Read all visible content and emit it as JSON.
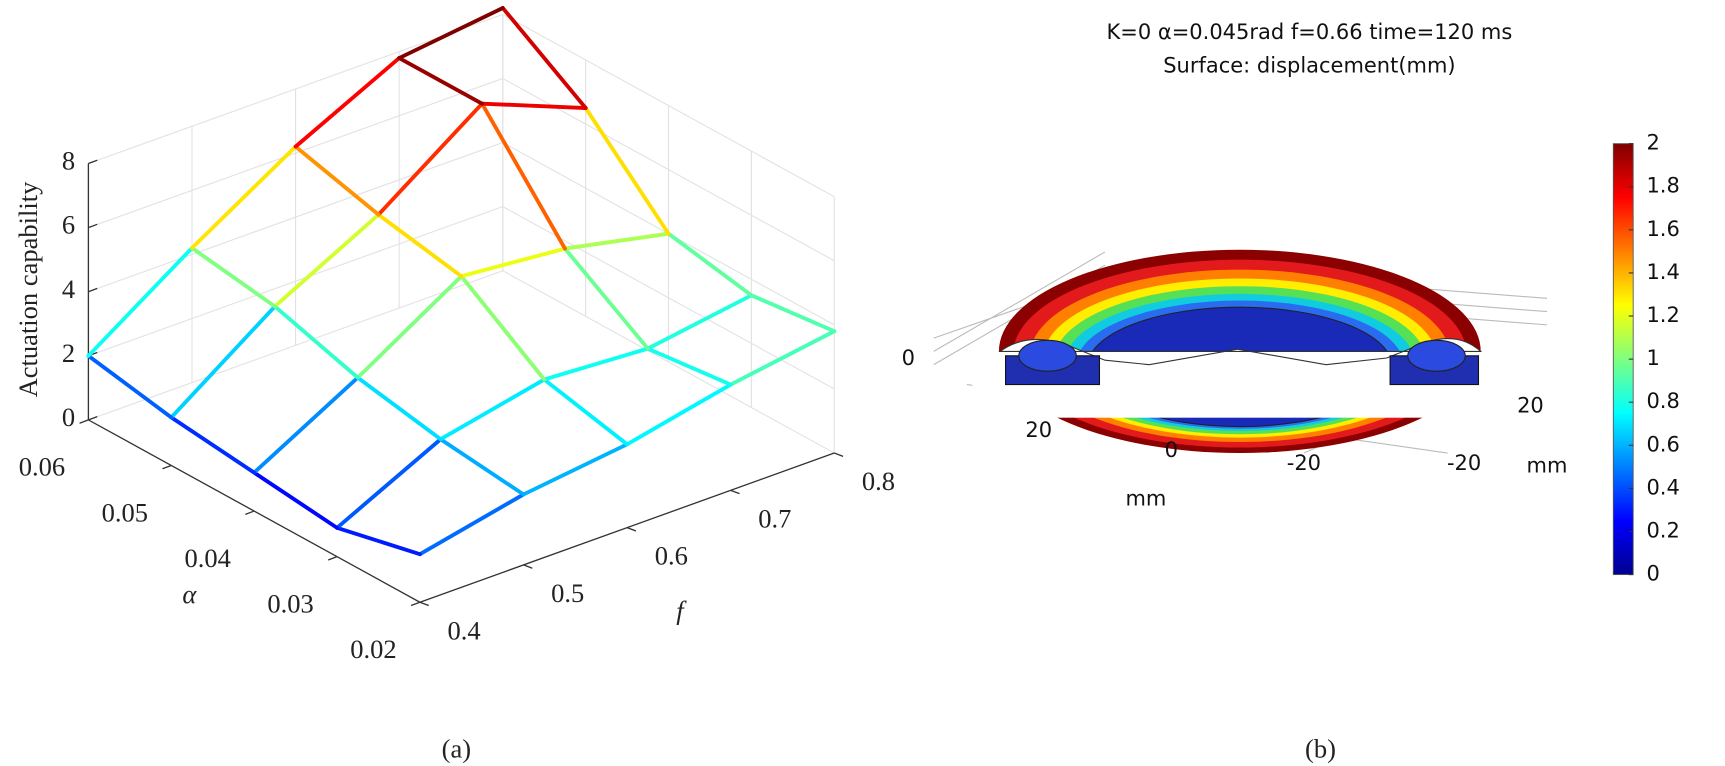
{
  "chart_data": [
    {
      "type": "mesh3d",
      "zlabel": "Actuation capability",
      "xlabel": "α",
      "ylabel": "f",
      "x": [
        0.02,
        0.03,
        0.04,
        0.05,
        0.06
      ],
      "y": [
        0.4,
        0.5,
        0.6,
        0.7,
        0.8
      ],
      "z": [
        [
          1.5,
          2.2,
          2.6,
          3.3,
          3.8
        ],
        [
          0.9,
          2.5,
          3.2,
          3.0,
          3.5
        ],
        [
          1.2,
          3.0,
          5.0,
          4.7,
          4.0
        ],
        [
          1.5,
          3.8,
          5.5,
          7.8,
          6.5
        ],
        [
          2.0,
          4.2,
          6.2,
          7.8,
          8.2
        ]
      ],
      "xlim": [
        0.02,
        0.06
      ],
      "xticks": [
        0.02,
        0.03,
        0.04,
        0.05,
        0.06
      ],
      "ylim": [
        0.4,
        0.8
      ],
      "yticks": [
        0.4,
        0.5,
        0.6,
        0.7,
        0.8
      ],
      "zlim": [
        0,
        8
      ],
      "zticks": [
        0,
        2,
        4,
        6,
        8
      ],
      "grid": true,
      "colormap": "jet",
      "caption": "(a)"
    },
    {
      "type": "surface-render",
      "title": "K=0 α=0.045rad f=0.66 time=120 ms",
      "subtitle": "Surface:  displacement(mm)",
      "zticks": [
        0
      ],
      "xticks": [
        20,
        0,
        -20
      ],
      "yticks": [
        20,
        -20
      ],
      "xlabel": "mm",
      "ylabel": "mm",
      "clim": [
        0,
        2
      ],
      "cticks": [
        0,
        0.2,
        0.4,
        0.6,
        0.8,
        1,
        1.2,
        1.4,
        1.6,
        1.8,
        2
      ],
      "colormap": "jet",
      "caption": "(b)"
    }
  ]
}
